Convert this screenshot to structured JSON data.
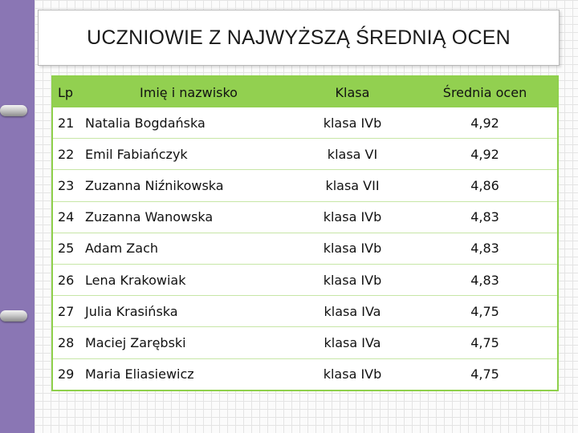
{
  "title": "UCZNIOWIE Z NAJWYŻSZĄ ŚREDNIĄ OCEN",
  "table": {
    "headers": [
      "Lp",
      "Imię i nazwisko",
      "Klasa",
      "Średnia ocen"
    ],
    "rows": [
      {
        "lp": "21",
        "name": "Natalia Bogdańska",
        "klasa": "klasa IVb",
        "avg": "4,92"
      },
      {
        "lp": "22",
        "name": "Emil Fabiańczyk",
        "klasa": "klasa VI",
        "avg": "4,92"
      },
      {
        "lp": "23",
        "name": "Zuzanna Niźnikowska",
        "klasa": "klasa VII",
        "avg": "4,86"
      },
      {
        "lp": "24",
        "name": "Zuzanna Wanowska",
        "klasa": "klasa IVb",
        "avg": "4,83"
      },
      {
        "lp": "25",
        "name": "Adam Zach",
        "klasa": "klasa IVb",
        "avg": "4,83"
      },
      {
        "lp": "26",
        "name": "Lena Krakowiak",
        "klasa": "klasa IVb",
        "avg": "4,83"
      },
      {
        "lp": "27",
        "name": "Julia Krasińska",
        "klasa": "klasa IVa",
        "avg": "4,75"
      },
      {
        "lp": "28",
        "name": "Maciej Zarębski",
        "klasa": "klasa IVa",
        "avg": "4,75"
      },
      {
        "lp": "29",
        "name": "Maria Eliasiewicz",
        "klasa": "klasa IVb",
        "avg": "4,75"
      }
    ]
  },
  "colors": {
    "header_green": "#92d050",
    "border_green": "#8fd04c",
    "side_strip": "#8a76b4"
  }
}
